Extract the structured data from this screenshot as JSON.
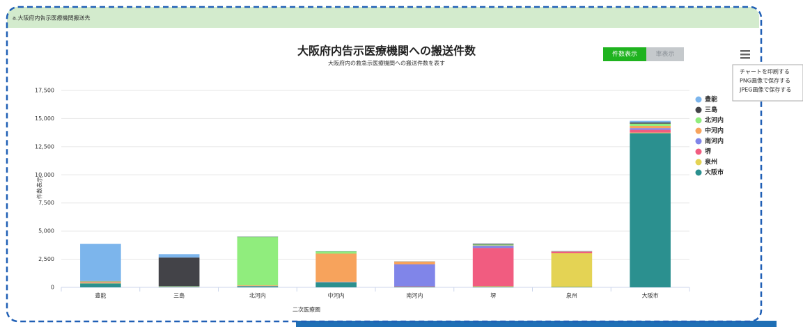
{
  "panel": {
    "title": "a.大阪府内告示医療機関搬送先"
  },
  "toggle": {
    "count": "件数表示",
    "rate": "率表示"
  },
  "menu": {
    "items": [
      "チャートを印刷する",
      "PNG画像で保存する",
      "JPEG画像で保存する"
    ]
  },
  "chart_data": {
    "type": "stacked_bar",
    "title": "大阪府内告示医療機関への搬送件数",
    "subtitle": "大阪府内の救急示医療機関への搬送件数を表す",
    "x_label": "二次医療圏",
    "y_label": "件数表示",
    "categories": [
      "豊能",
      "三島",
      "北河内",
      "中河内",
      "南河内",
      "堺",
      "泉州",
      "大阪市"
    ],
    "series": [
      {
        "name": "豊能",
        "color": "#7cb5ec",
        "values": [
          3300,
          300,
          10,
          10,
          10,
          10,
          10,
          150
        ]
      },
      {
        "name": "三島",
        "color": "#434348",
        "values": [
          20,
          2550,
          30,
          10,
          10,
          60,
          10,
          100
        ]
      },
      {
        "name": "北河内",
        "color": "#90ed7d",
        "values": [
          30,
          30,
          4300,
          200,
          10,
          80,
          10,
          200
        ]
      },
      {
        "name": "中河内",
        "color": "#f7a35c",
        "values": [
          60,
          10,
          50,
          2500,
          250,
          30,
          10,
          200
        ]
      },
      {
        "name": "南河内",
        "color": "#8085e9",
        "values": [
          20,
          10,
          10,
          20,
          1950,
          200,
          10,
          150
        ]
      },
      {
        "name": "堺",
        "color": "#f15c80",
        "values": [
          30,
          10,
          10,
          20,
          30,
          3400,
          150,
          250
        ]
      },
      {
        "name": "泉州",
        "color": "#e4d354",
        "values": [
          50,
          10,
          10,
          10,
          10,
          50,
          3000,
          50
        ]
      },
      {
        "name": "大阪市",
        "color": "#2b908f",
        "values": [
          350,
          30,
          100,
          450,
          50,
          50,
          30,
          13700
        ]
      }
    ],
    "ylim": [
      0,
      17500
    ],
    "yticks": [
      0,
      {
        "value": 2500,
        "label": "2,500"
      },
      {
        "value": 5000,
        "label": "5,000"
      },
      {
        "value": 7500,
        "label": "7,500"
      },
      {
        "value": 10000,
        "label": "10,000"
      },
      {
        "value": 12500,
        "label": "12,500"
      },
      {
        "value": 15000,
        "label": "15,000"
      },
      {
        "value": 17500,
        "label": "17,500"
      }
    ],
    "grid": true,
    "legend": "right"
  }
}
